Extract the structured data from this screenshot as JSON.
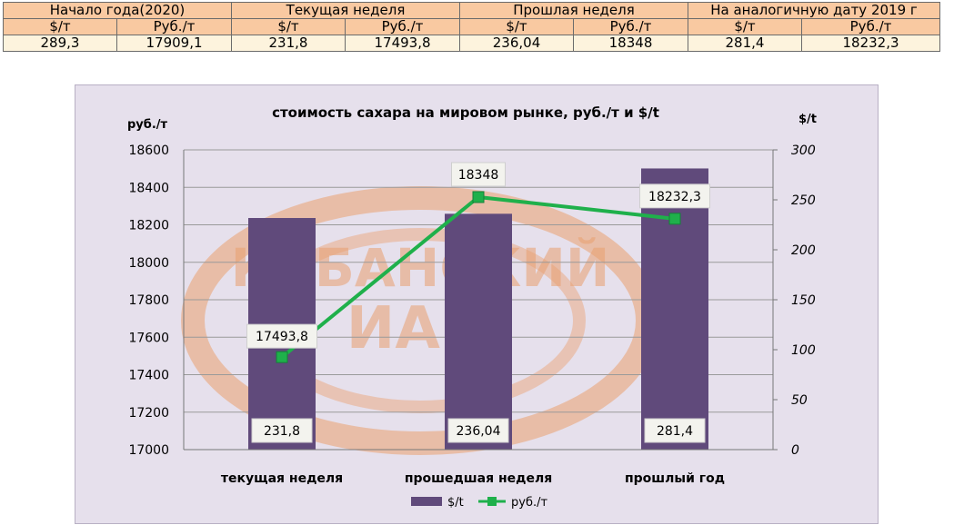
{
  "table": {
    "headers": [
      "Начало года(2020)",
      "Текущая неделя",
      "Прошлая неделя",
      "На аналогичную дату 2019 г"
    ],
    "subheaders": [
      "$/т",
      "Руб./т",
      "$/т",
      "Руб./т",
      "$/т",
      "Руб./т",
      "$/т",
      "Руб./т"
    ],
    "values": [
      "289,3",
      "17909,1",
      "231,8",
      "17493,8",
      "236,04",
      "18348",
      "281,4",
      "18232,3"
    ],
    "colors": {
      "header_bg": "#f9c9a1",
      "values_bg": "#fdf3dd",
      "border": "#6b6b6b"
    }
  },
  "chart_data": {
    "type": "bar",
    "title": "стоимость сахара на мировом рынке, руб./т и $/t",
    "y_left_unit": "руб./т",
    "y_right_unit": "$/t",
    "categories": [
      "текущая  неделя",
      "прошедшая неделя",
      "прошлый год"
    ],
    "series": [
      {
        "name": "$/t",
        "type": "bar",
        "axis": "right",
        "values": [
          231.8,
          236.04,
          281.4
        ],
        "labels": [
          "231,8",
          "236,04",
          "281,4"
        ],
        "color": "#604a7b"
      },
      {
        "name": "руб./т",
        "type": "line",
        "axis": "left",
        "values": [
          17493.8,
          18348,
          18232.3
        ],
        "labels": [
          "17493,8",
          "18348",
          "18232,3"
        ],
        "color": "#1fb04b"
      }
    ],
    "y_left": {
      "min": 17000,
      "max": 18600,
      "step": 200,
      "ticks": [
        "17000",
        "17200",
        "17400",
        "17600",
        "17800",
        "18000",
        "18200",
        "18400",
        "18600"
      ]
    },
    "y_right": {
      "min": 0,
      "max": 300,
      "step": 50,
      "ticks": [
        "0",
        "50",
        "100",
        "150",
        "200",
        "250",
        "300"
      ]
    },
    "grid": true,
    "legend": "bottom-center",
    "background": "#e6e0ec",
    "watermark": {
      "line1": "КУБАНСКИЙ",
      "line2": "ИАЦ",
      "color": "#e9a070"
    }
  }
}
